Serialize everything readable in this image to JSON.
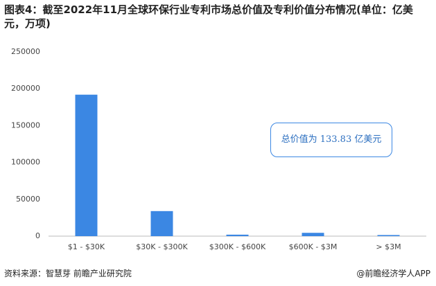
{
  "chart_data": {
    "type": "bar",
    "title": "图表4：截至2022年11月全球环保行业专利市场总价值及专利价值分布情况(单位：亿美元，万项)",
    "categories": [
      "$1 - $30K",
      "$30K - $300K",
      "$300K - $600K",
      "$600K - $3M",
      "> $3M"
    ],
    "values": [
      192000,
      34000,
      2000,
      4500,
      1500
    ],
    "color": "#3b87e3",
    "ylim": [
      0,
      250000
    ],
    "yticks": [
      0,
      50000,
      100000,
      150000,
      200000,
      250000
    ],
    "grid": false,
    "annotation": "总价值为 133.83 亿美元",
    "source": "资料来源：智慧芽 前瞻产业研究院",
    "credit": "@前瞻经济学人APP"
  }
}
